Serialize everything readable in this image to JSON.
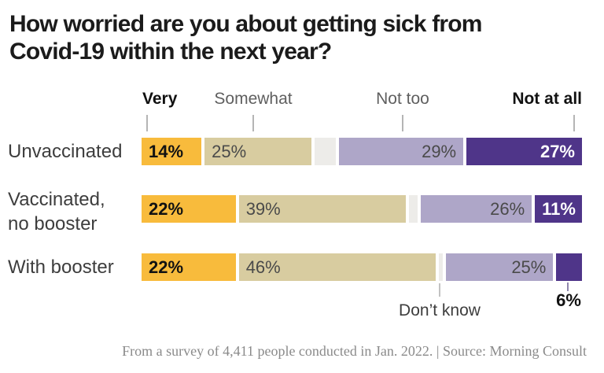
{
  "title": {
    "line1": "How worried are you about getting sick from",
    "line2": "Covid-19 within the next year?"
  },
  "legend": {
    "items": [
      {
        "label": "Very",
        "emphasis": "bold"
      },
      {
        "label": "Somewhat",
        "emphasis": "normal"
      },
      {
        "label": "Not too",
        "emphasis": "normal"
      },
      {
        "label": "Not at all",
        "emphasis": "bold"
      }
    ]
  },
  "annotations": {
    "dont_know_label": "Don’t know",
    "with_booster_not_at_all_label": "6%"
  },
  "footer": {
    "text": "From a survey of 4,411 people conducted in Jan. 2022. | Source: Morning Consult"
  },
  "colors": {
    "very": "#F8BB3C",
    "somewhat": "#D8CCA0",
    "dont_know": "#EDECE9",
    "not_too": "#AEA6C8",
    "not_at_all": "#4F3589",
    "title_text": "#1b1b1b",
    "muted_text": "#5f5f5f",
    "footer_text": "#8a8a8a"
  },
  "chart_data": {
    "type": "bar",
    "orientation": "horizontal",
    "stacked": true,
    "title": "How worried are you about getting sick from Covid-19 within the next year?",
    "xlim": [
      0,
      100
    ],
    "unit": "%",
    "series_order": [
      "very",
      "somewhat",
      "dont_know",
      "not_too",
      "not_at_all"
    ],
    "series_labels": {
      "very": "Very",
      "somewhat": "Somewhat",
      "dont_know": "Don’t know",
      "not_too": "Not too",
      "not_at_all": "Not at all"
    },
    "categories": [
      "Unvaccinated",
      "Vaccinated,\nno booster",
      "With booster"
    ],
    "rows": [
      {
        "category": "Unvaccinated",
        "segments": [
          {
            "series": "very",
            "value": 14,
            "label": "14%",
            "label_pos": "in-left"
          },
          {
            "series": "somewhat",
            "value": 25,
            "label": "25%",
            "label_pos": "in-left"
          },
          {
            "series": "dont_know",
            "value": 5,
            "label": "",
            "label_pos": "none"
          },
          {
            "series": "not_too",
            "value": 29,
            "label": "29%",
            "label_pos": "in-right"
          },
          {
            "series": "not_at_all",
            "value": 27,
            "label": "27%",
            "label_pos": "in-right"
          }
        ]
      },
      {
        "category": "Vaccinated,\nno booster",
        "segments": [
          {
            "series": "very",
            "value": 22,
            "label": "22%",
            "label_pos": "in-left"
          },
          {
            "series": "somewhat",
            "value": 39,
            "label": "39%",
            "label_pos": "in-left"
          },
          {
            "series": "dont_know",
            "value": 2,
            "label": "",
            "label_pos": "none"
          },
          {
            "series": "not_too",
            "value": 26,
            "label": "26%",
            "label_pos": "in-right"
          },
          {
            "series": "not_at_all",
            "value": 11,
            "label": "11%",
            "label_pos": "in-right"
          }
        ]
      },
      {
        "category": "With booster",
        "segments": [
          {
            "series": "very",
            "value": 22,
            "label": "22%",
            "label_pos": "in-left"
          },
          {
            "series": "somewhat",
            "value": 46,
            "label": "46%",
            "label_pos": "in-left"
          },
          {
            "series": "dont_know",
            "value": 1,
            "label": "",
            "label_pos": "none"
          },
          {
            "series": "not_too",
            "value": 25,
            "label": "25%",
            "label_pos": "in-right"
          },
          {
            "series": "not_at_all",
            "value": 6,
            "label": "6%",
            "label_pos": "below"
          }
        ]
      }
    ]
  }
}
